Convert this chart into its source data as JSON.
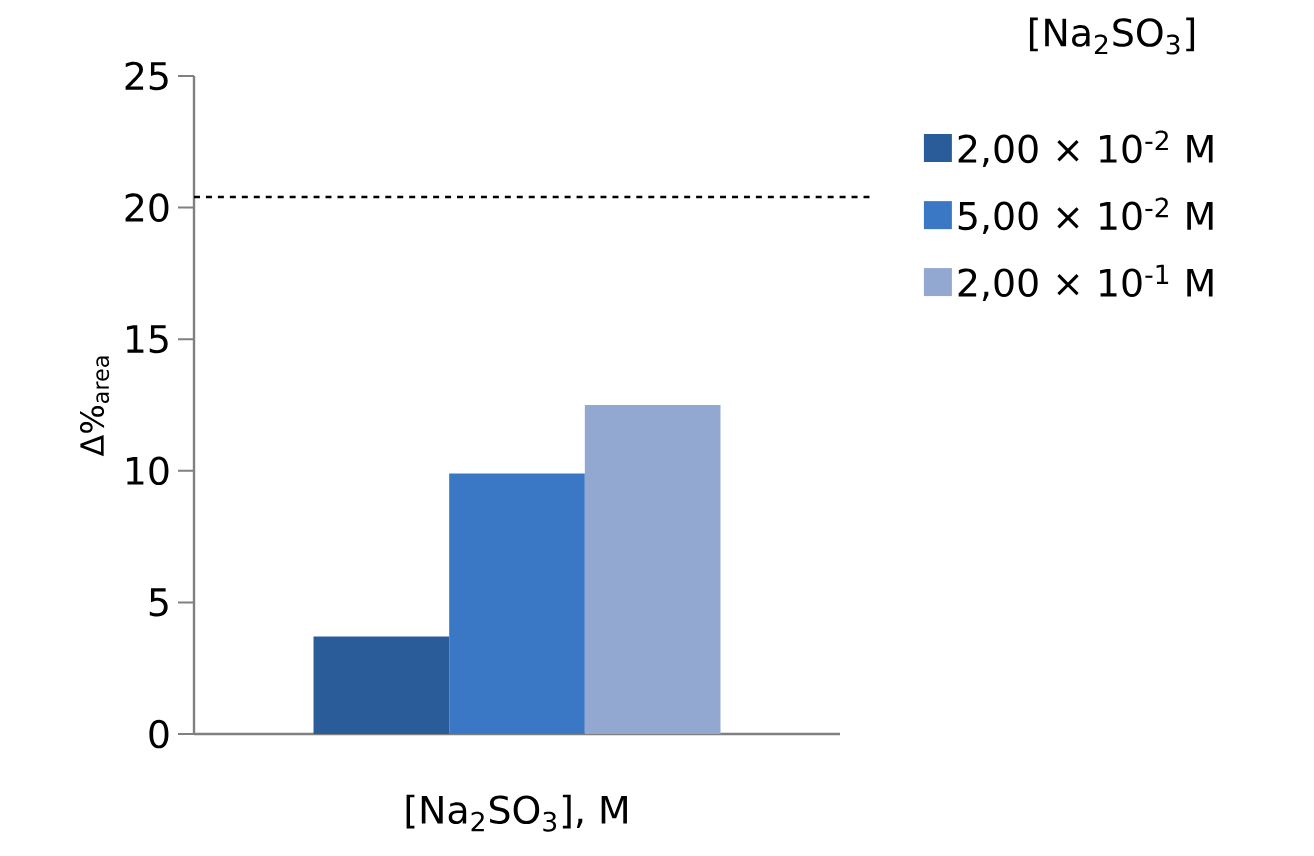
{
  "chart_data": {
    "type": "bar",
    "xlabel": "[Na$_{2}$SO$_{3}$], M",
    "ylabel": "Δ%$_{area}$",
    "legend_title": "[Na$_{2}$SO$_{3}$]",
    "categories": [
      null
    ],
    "series": [
      {
        "name": "2,00 × 10$^{-2}$ M",
        "color": "#2b5c9a",
        "values": [
          3.7
        ]
      },
      {
        "name": "5,00 × 10$^{-2}$ M",
        "color": "#3a78c6",
        "values": [
          9.9
        ]
      },
      {
        "name": "2,00 × 10$^{-1}$ M",
        "color": "#93a8d0",
        "values": [
          12.5
        ]
      }
    ],
    "ylim": [
      0,
      25
    ],
    "yticks": [
      0,
      5,
      10,
      15,
      20,
      25
    ],
    "grid": false,
    "legend": "right",
    "ref_lines": [
      {
        "axis": "y",
        "value": 20.4,
        "color": "#000000",
        "line_style": "dashed"
      }
    ]
  }
}
